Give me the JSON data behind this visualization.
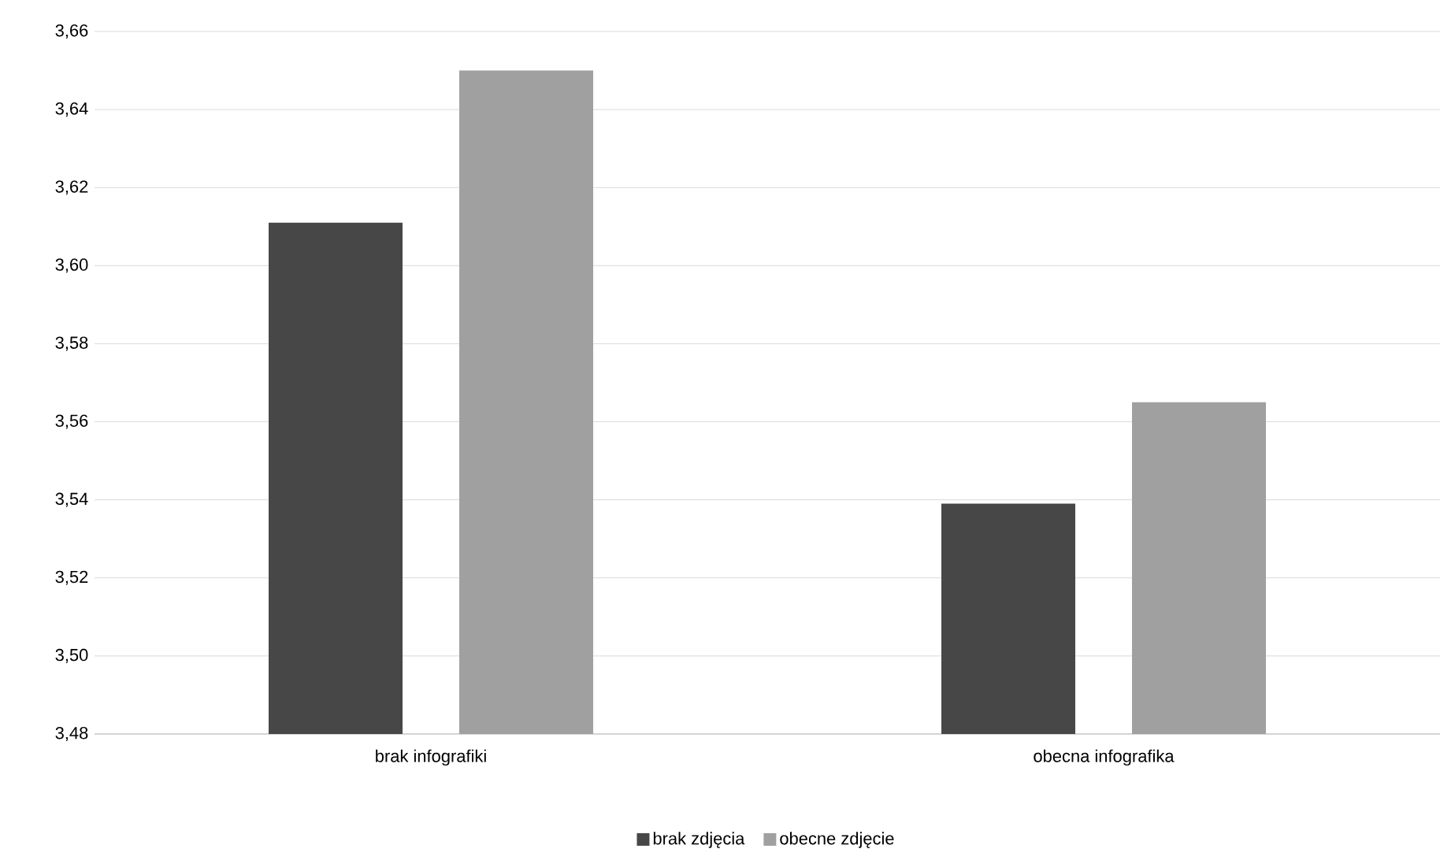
{
  "chart_data": {
    "type": "bar",
    "categories": [
      "brak infografiki",
      "obecna infografika"
    ],
    "series": [
      {
        "name": "brak zdjęcia",
        "color": "#474747",
        "values": [
          3.611,
          3.539
        ]
      },
      {
        "name": "obecne zdjęcie",
        "color": "#a0a0a0",
        "values": [
          3.65,
          3.565
        ]
      }
    ],
    "ylim": [
      3.48,
      3.66
    ],
    "yticks": [
      {
        "value": 3.48,
        "label": "3,48"
      },
      {
        "value": 3.5,
        "label": "3,50"
      },
      {
        "value": 3.52,
        "label": "3,52"
      },
      {
        "value": 3.54,
        "label": "3,54"
      },
      {
        "value": 3.56,
        "label": "3,56"
      },
      {
        "value": 3.58,
        "label": "3,58"
      },
      {
        "value": 3.6,
        "label": "3,60"
      },
      {
        "value": 3.62,
        "label": "3,62"
      },
      {
        "value": 3.64,
        "label": "3,64"
      },
      {
        "value": 3.66,
        "label": "3,66"
      }
    ],
    "grid": "y",
    "legend": "bottom"
  }
}
